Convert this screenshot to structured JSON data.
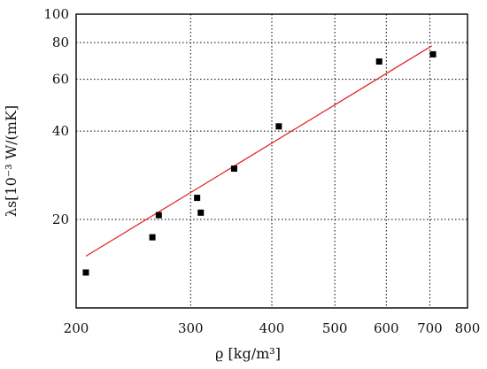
{
  "chart_data": {
    "type": "scatter",
    "title": "",
    "xlabel": "ϱ [kg/m³]",
    "ylabel": "λs[10⁻³ W/(mK]",
    "x_scale": "log",
    "y_scale": "log",
    "xlim": [
      200,
      800
    ],
    "ylim": [
      10,
      100
    ],
    "x_ticks": [
      200,
      300,
      400,
      500,
      600,
      700,
      800
    ],
    "x_tick_labels": [
      "200",
      "300",
      "400",
      "500",
      "600",
      "700",
      "800"
    ],
    "y_ticks": [
      20,
      40,
      60,
      80,
      100
    ],
    "y_tick_labels": [
      "20",
      "40",
      "60",
      "80",
      "100"
    ],
    "grid": true,
    "grid_style": "dotted",
    "series": [
      {
        "kind": "points",
        "marker": "square",
        "color": "#000000",
        "points": [
          {
            "x": 207,
            "y": 13.2
          },
          {
            "x": 262,
            "y": 17.4
          },
          {
            "x": 268,
            "y": 20.7
          },
          {
            "x": 307,
            "y": 23.7
          },
          {
            "x": 311,
            "y": 21.1
          },
          {
            "x": 350,
            "y": 29.8
          },
          {
            "x": 410,
            "y": 41.5
          },
          {
            "x": 585,
            "y": 69.0
          },
          {
            "x": 708,
            "y": 73.0
          }
        ]
      },
      {
        "kind": "fit-line",
        "color": "#e02020",
        "points": [
          {
            "x": 207,
            "y": 15.0
          },
          {
            "x": 705,
            "y": 78.0
          }
        ]
      }
    ]
  }
}
